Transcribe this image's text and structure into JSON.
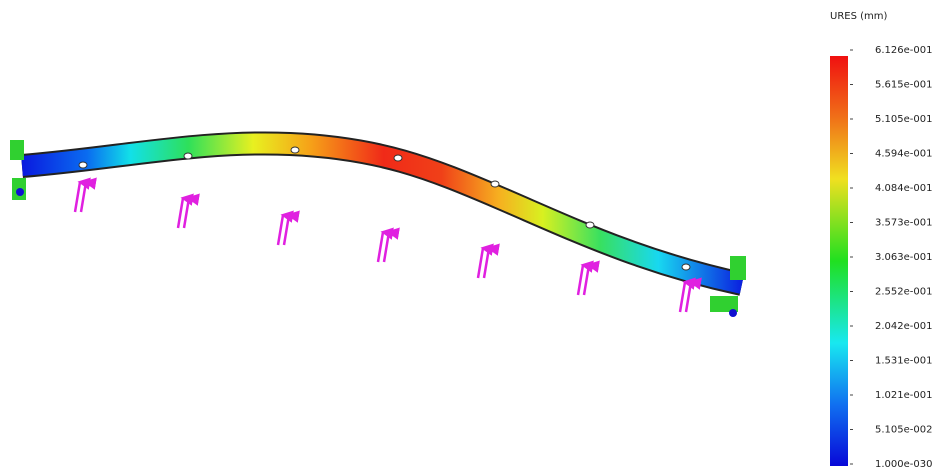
{
  "legend": {
    "title": "URES (mm)",
    "labels": [
      "6.126e-001",
      "5.615e-001",
      "5.105e-001",
      "4.594e-001",
      "4.084e-001",
      "3.573e-001",
      "3.063e-001",
      "2.552e-001",
      "2.042e-001",
      "1.531e-001",
      "1.021e-001",
      "5.105e-002",
      "1.000e-030"
    ]
  }
}
